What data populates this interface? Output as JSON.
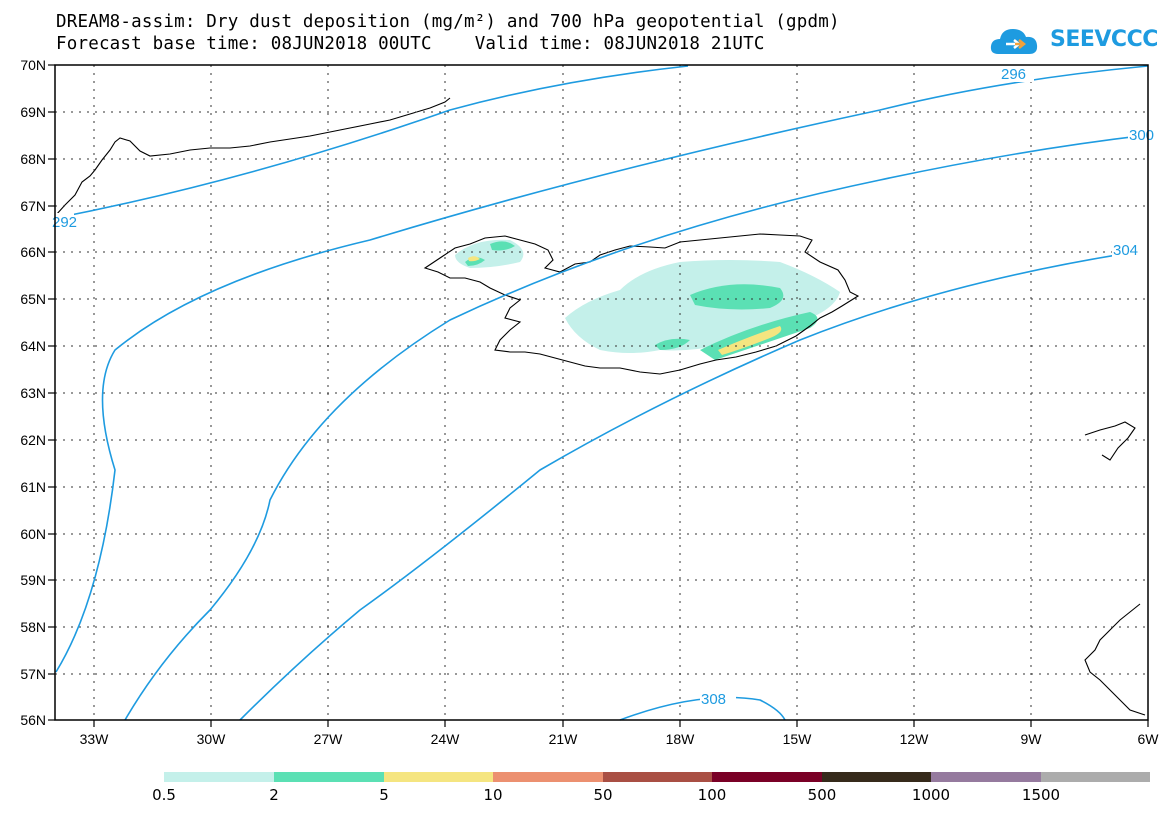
{
  "header": {
    "line1": "DREAM8-assim: Dry dust deposition (mg/m²) and 700 hPa geopotential (gpdm)",
    "line2": "Forecast base time: 08JUN2018 00UTC    Valid time: 08JUN2018 21UTC"
  },
  "logo": {
    "text": "SEEVCCC",
    "icon": "cloud-icon",
    "color": "#1e9be0"
  },
  "axes": {
    "lat_labels": [
      "70N",
      "69N",
      "68N",
      "67N",
      "66N",
      "65N",
      "64N",
      "63N",
      "62N",
      "61N",
      "60N",
      "59N",
      "58N",
      "57N",
      "56N"
    ],
    "lon_labels": [
      "33W",
      "30W",
      "27W",
      "24W",
      "21W",
      "18W",
      "15W",
      "12W",
      "9W",
      "6W"
    ]
  },
  "contours": {
    "color": "#1e9be0",
    "labels": [
      "292",
      "296",
      "300",
      "304",
      "308"
    ]
  },
  "colorbar": {
    "colors": [
      "#c4f0ea",
      "#5be0b4",
      "#f5e580",
      "#ec9070",
      "#a94f44",
      "#7a0026",
      "#362a1b",
      "#957a9e",
      "#acacac"
    ],
    "labels": [
      "0.5",
      "2",
      "5",
      "10",
      "50",
      "100",
      "500",
      "1000",
      "1500"
    ]
  }
}
